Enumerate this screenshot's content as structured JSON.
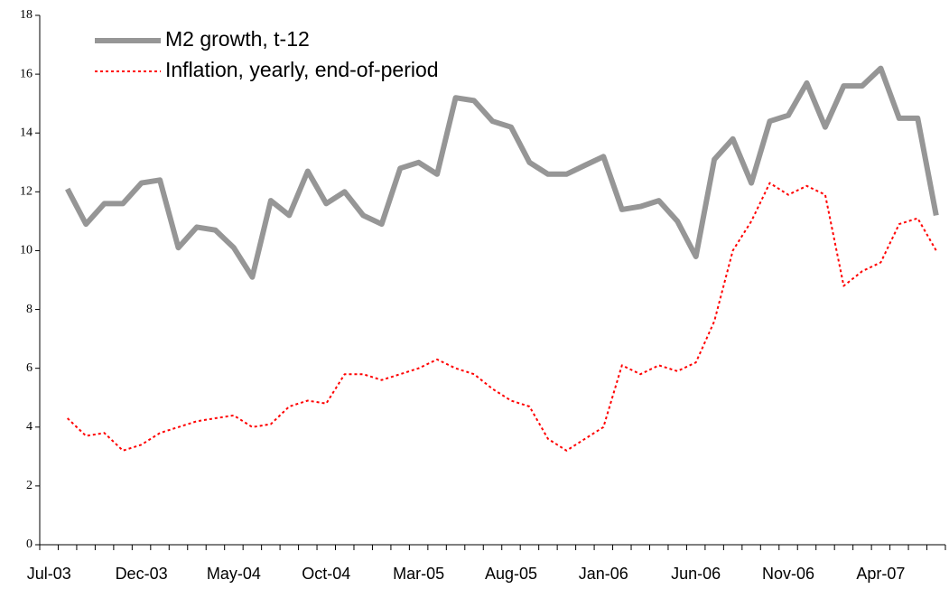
{
  "chart_data": {
    "type": "line",
    "categories": [
      "Jul-03",
      null,
      null,
      null,
      null,
      "Dec-03",
      null,
      null,
      null,
      null,
      "May-04",
      null,
      null,
      null,
      null,
      "Oct-04",
      null,
      null,
      null,
      null,
      "Mar-05",
      null,
      null,
      null,
      null,
      "Aug-05",
      null,
      null,
      null,
      null,
      "Jan-06",
      null,
      null,
      null,
      null,
      "Jun-06",
      null,
      null,
      null,
      null,
      "Nov-06",
      null,
      null,
      null,
      null,
      "Apr-07",
      null,
      null,
      null
    ],
    "series": [
      {
        "name": "M2 growth, t-12",
        "color": "#969696",
        "style": "solid",
        "values": [
          null,
          12.1,
          10.9,
          11.6,
          11.6,
          12.3,
          12.4,
          10.1,
          10.8,
          10.7,
          10.1,
          9.1,
          11.7,
          11.2,
          12.7,
          11.6,
          12.0,
          11.2,
          10.9,
          12.8,
          13.0,
          12.6,
          15.2,
          15.1,
          14.4,
          14.2,
          13.0,
          12.6,
          12.6,
          12.9,
          13.2,
          11.4,
          11.5,
          11.7,
          11.0,
          9.8,
          13.1,
          13.8,
          12.3,
          14.4,
          14.6,
          15.7,
          14.2,
          15.6,
          15.6,
          16.2,
          14.5,
          14.5,
          11.2
        ]
      },
      {
        "name": "Inflation, yearly, end-of-period",
        "color": "#ff0000",
        "style": "dotted",
        "values": [
          null,
          4.3,
          3.7,
          3.8,
          3.2,
          3.4,
          3.8,
          4.0,
          4.2,
          4.3,
          4.4,
          4.0,
          4.1,
          4.7,
          4.9,
          4.8,
          5.8,
          5.8,
          5.6,
          5.8,
          6.0,
          6.3,
          6.0,
          5.8,
          5.3,
          4.9,
          4.7,
          3.6,
          3.2,
          3.6,
          4.0,
          6.1,
          5.8,
          6.1,
          5.9,
          6.2,
          7.6,
          10.0,
          11.0,
          12.3,
          11.9,
          12.2,
          11.9,
          8.8,
          9.3,
          9.6,
          10.9,
          11.1,
          10.0
        ]
      }
    ],
    "ylim": [
      0,
      18
    ],
    "yticks": [
      0,
      2,
      4,
      6,
      8,
      10,
      12,
      14,
      16,
      18
    ],
    "grid": false,
    "legend": "top-left"
  }
}
